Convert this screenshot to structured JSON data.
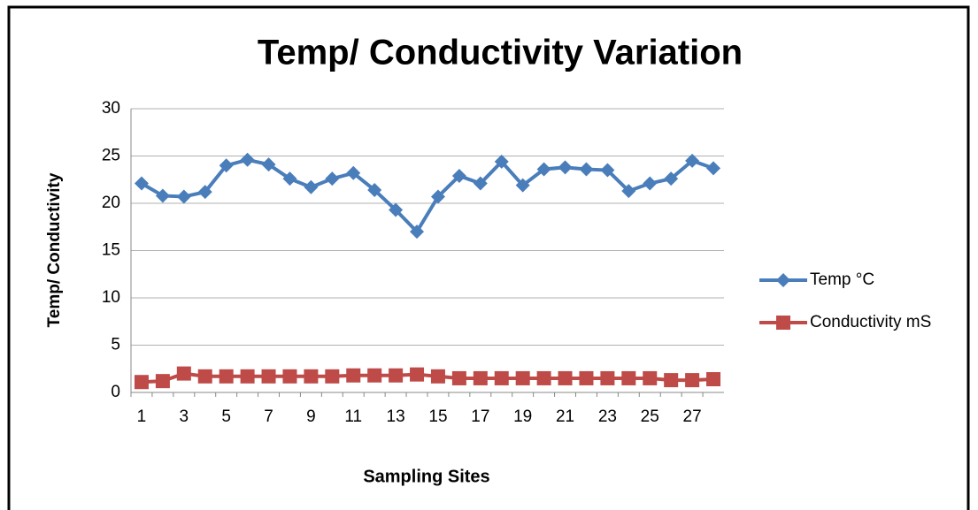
{
  "chart_data": {
    "type": "line",
    "title": "Temp/ Conductivity Variation",
    "x_label": "Sampling Sites",
    "y_label": "Temp/ Conductivity",
    "categories": [
      "1",
      null,
      "3",
      null,
      "5",
      null,
      "7",
      null,
      "9",
      null,
      "11",
      null,
      "13",
      null,
      "15",
      null,
      "17",
      null,
      "19",
      null,
      "21",
      null,
      "23",
      null,
      "25",
      null,
      "27",
      null
    ],
    "series": [
      {
        "name": "Temp °C",
        "color": "#4a7ebb",
        "marker": "diamond",
        "values": [
          22.1,
          20.8,
          20.7,
          21.2,
          24.0,
          24.6,
          24.1,
          22.6,
          21.7,
          22.6,
          23.2,
          21.4,
          19.3,
          17.0,
          20.7,
          22.9,
          22.1,
          24.4,
          21.9,
          23.6,
          23.8,
          23.6,
          23.5,
          21.3,
          22.1,
          22.6,
          24.5,
          23.7
        ]
      },
      {
        "name": "Conductivity mS",
        "color": "#be4b48",
        "marker": "square",
        "values": [
          1.1,
          1.2,
          2.0,
          1.7,
          1.7,
          1.7,
          1.7,
          1.7,
          1.7,
          1.7,
          1.8,
          1.8,
          1.8,
          1.9,
          1.7,
          1.5,
          1.5,
          1.5,
          1.5,
          1.5,
          1.5,
          1.5,
          1.5,
          1.5,
          1.5,
          1.3,
          1.3,
          1.4
        ]
      }
    ],
    "ylim": [
      0,
      30
    ],
    "yticks": [
      0,
      5,
      10,
      15,
      20,
      25,
      30
    ],
    "grid": true,
    "legend": "right"
  }
}
